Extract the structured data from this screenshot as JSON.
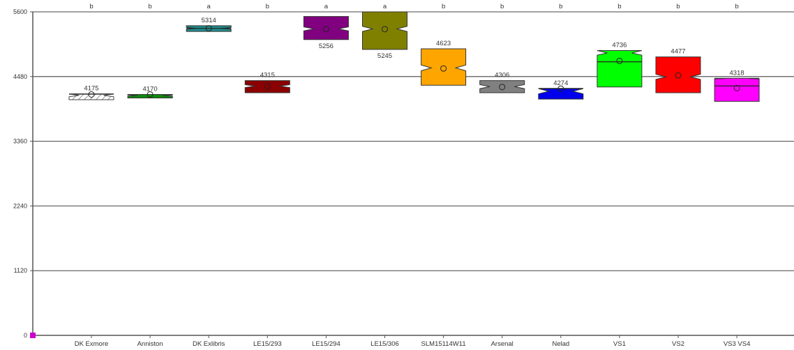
{
  "chart_data": {
    "type": "boxplot",
    "title": "",
    "xlabel": "",
    "ylabel": "",
    "ylim": [
      0,
      5600
    ],
    "yticks": [
      0,
      1120,
      2240,
      3360,
      4480,
      5600
    ],
    "grid": true,
    "categories": [
      "DK Exmore",
      "Anniston",
      "DK Exlibris",
      "LE15/293",
      "LE15/294",
      "LE15/306",
      "SLM15114W11",
      "Arsenal",
      "Nelad",
      "VS1",
      "VS2",
      "VS3 VS4"
    ],
    "groups": [
      "b",
      "b",
      "a",
      "b",
      "a",
      "a",
      "b",
      "b",
      "b",
      "b",
      "b",
      "b"
    ],
    "medians": [
      4175,
      4170,
      5314,
      4315,
      5256,
      5245,
      4623,
      4306,
      4274,
      4736,
      4477,
      4318
    ],
    "mean_markers": [
      4170,
      4170,
      5315,
      4315,
      5300,
      5300,
      4620,
      4300,
      4270,
      4750,
      4500,
      4280
    ],
    "label_position": [
      "above",
      "above",
      "above",
      "above",
      "below",
      "below",
      "above",
      "above",
      "above",
      "above",
      "above",
      "above"
    ],
    "boxes": [
      {
        "q1": 4080,
        "q3": 4180,
        "nlo": 4130,
        "nhi": 4180,
        "median_line": true,
        "color": "#ffffff",
        "hatch": true
      },
      {
        "q1": 4110,
        "q3": 4170,
        "nlo": 4140,
        "nhi": 4160,
        "median_line": false,
        "color": "#0e8a0e"
      },
      {
        "q1": 5260,
        "q3": 5360,
        "nlo": 5300,
        "nhi": 5330,
        "median_line": true,
        "color": "#218c8c"
      },
      {
        "q1": 4200,
        "q3": 4410,
        "nlo": 4290,
        "nhi": 4340,
        "median_line": false,
        "color": "#8b0000"
      },
      {
        "q1": 5120,
        "q3": 5520,
        "nlo": 5270,
        "nhi": 5340,
        "median_line": false,
        "color": "#800080"
      },
      {
        "q1": 4950,
        "q3": 5600,
        "nlo": 5260,
        "nhi": 5350,
        "median_line": false,
        "color": "#808000"
      },
      {
        "q1": 4330,
        "q3": 4960,
        "nlo": 4580,
        "nhi": 4680,
        "median_line": false,
        "color": "#ffa500"
      },
      {
        "q1": 4200,
        "q3": 4410,
        "nlo": 4270,
        "nhi": 4340,
        "median_line": false,
        "color": "#808080"
      },
      {
        "q1": 4090,
        "q3": 4270,
        "nlo": 4180,
        "nhi": 4270,
        "median_line": true,
        "color": "#0000ee"
      },
      {
        "q1": 4300,
        "q3": 4930,
        "nlo": 4850,
        "nhi": 4930,
        "median_line": true,
        "color": "#00ff00"
      },
      {
        "q1": 4200,
        "q3": 4820,
        "nlo": 4430,
        "nhi": 4520,
        "median_line": false,
        "color": "#ff0000"
      },
      {
        "q1": 4050,
        "q3": 4450,
        "nlo": 4440,
        "nhi": 4450,
        "median_line": true,
        "color": "#ff00ff"
      }
    ]
  }
}
